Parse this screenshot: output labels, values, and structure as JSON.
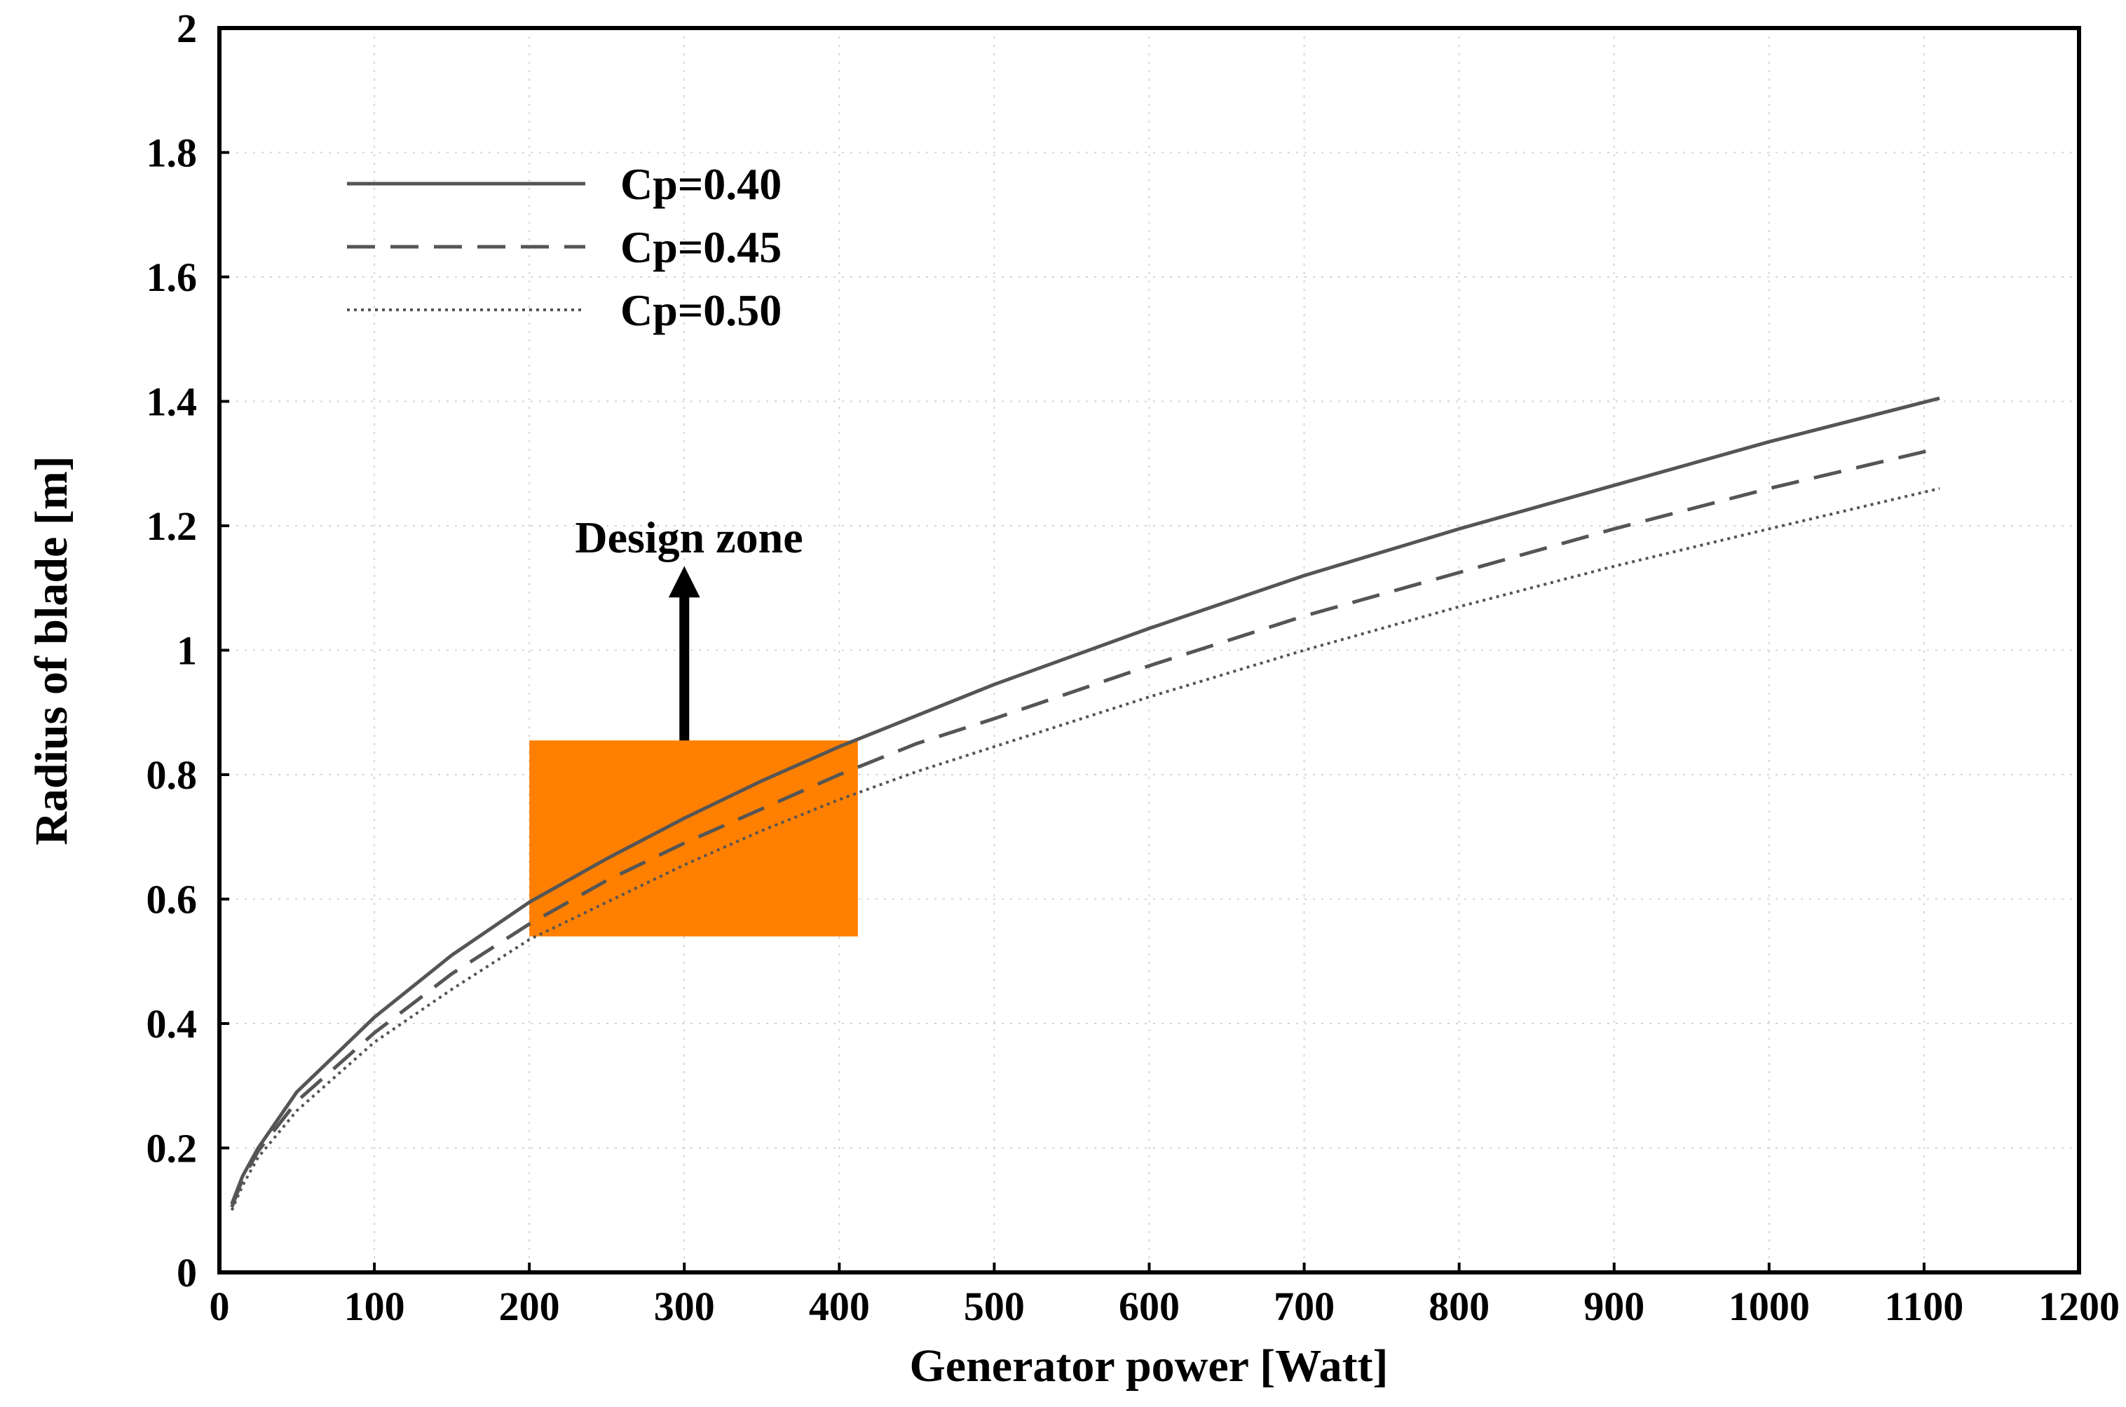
{
  "chart_data": {
    "type": "line",
    "title": "",
    "xlabel": "Generator power [Watt]",
    "ylabel": "Radius of blade [m]",
    "xlim": [
      0,
      1200
    ],
    "ylim": [
      0,
      2
    ],
    "x_ticks": [
      0,
      100,
      200,
      300,
      400,
      500,
      600,
      700,
      800,
      900,
      1000,
      1100,
      1200
    ],
    "y_ticks": [
      0,
      0.2,
      0.4,
      0.6,
      0.8,
      1,
      1.2,
      1.4,
      1.6,
      1.8,
      2
    ],
    "x_tick_labels": [
      "0",
      "100",
      "200",
      "300",
      "400",
      "500",
      "600",
      "700",
      "800",
      "900",
      "1000",
      "1100",
      "1200"
    ],
    "y_tick_labels": [
      "0",
      "0.2",
      "0.4",
      "0.6",
      "0.8",
      "1",
      "1.2",
      "1.4",
      "1.6",
      "1.8",
      "2"
    ],
    "grid": true,
    "legend_position": "top-left",
    "series": [
      {
        "name": "Cp=0.40",
        "style": "solid",
        "color": "#555555",
        "x": [
          8,
          15,
          25,
          50,
          75,
          100,
          150,
          200,
          250,
          300,
          350,
          400,
          450,
          500,
          600,
          700,
          800,
          900,
          1000,
          1110
        ],
        "y": [
          0.11,
          0.155,
          0.2,
          0.29,
          0.35,
          0.41,
          0.51,
          0.595,
          0.665,
          0.73,
          0.79,
          0.845,
          0.895,
          0.945,
          1.035,
          1.12,
          1.195,
          1.265,
          1.335,
          1.405
        ]
      },
      {
        "name": "Cp=0.45",
        "style": "dashed",
        "color": "#555555",
        "x": [
          8,
          15,
          25,
          50,
          75,
          100,
          150,
          200,
          250,
          300,
          350,
          400,
          450,
          500,
          600,
          700,
          800,
          900,
          1000,
          1110
        ],
        "y": [
          0.105,
          0.15,
          0.195,
          0.275,
          0.33,
          0.385,
          0.48,
          0.56,
          0.63,
          0.69,
          0.745,
          0.8,
          0.85,
          0.89,
          0.975,
          1.055,
          1.125,
          1.195,
          1.26,
          1.325
        ]
      },
      {
        "name": "Cp=0.50",
        "style": "dotted",
        "color": "#555555",
        "x": [
          8,
          15,
          25,
          50,
          75,
          100,
          150,
          200,
          250,
          300,
          350,
          400,
          450,
          500,
          600,
          700,
          800,
          900,
          1000,
          1110
        ],
        "y": [
          0.1,
          0.14,
          0.185,
          0.26,
          0.315,
          0.37,
          0.455,
          0.535,
          0.595,
          0.655,
          0.71,
          0.76,
          0.805,
          0.845,
          0.925,
          1.0,
          1.07,
          1.135,
          1.195,
          1.26
        ]
      }
    ],
    "annotations": [
      {
        "type": "rect",
        "label": "design-zone-box",
        "x_range": [
          200,
          412
        ],
        "y_range": [
          0.54,
          0.855
        ],
        "color": "#FF8000"
      },
      {
        "type": "arrow",
        "text": "Design zone",
        "x": 300,
        "y_from": 0.855,
        "y_to": 1.11,
        "color": "#000000"
      }
    ]
  }
}
